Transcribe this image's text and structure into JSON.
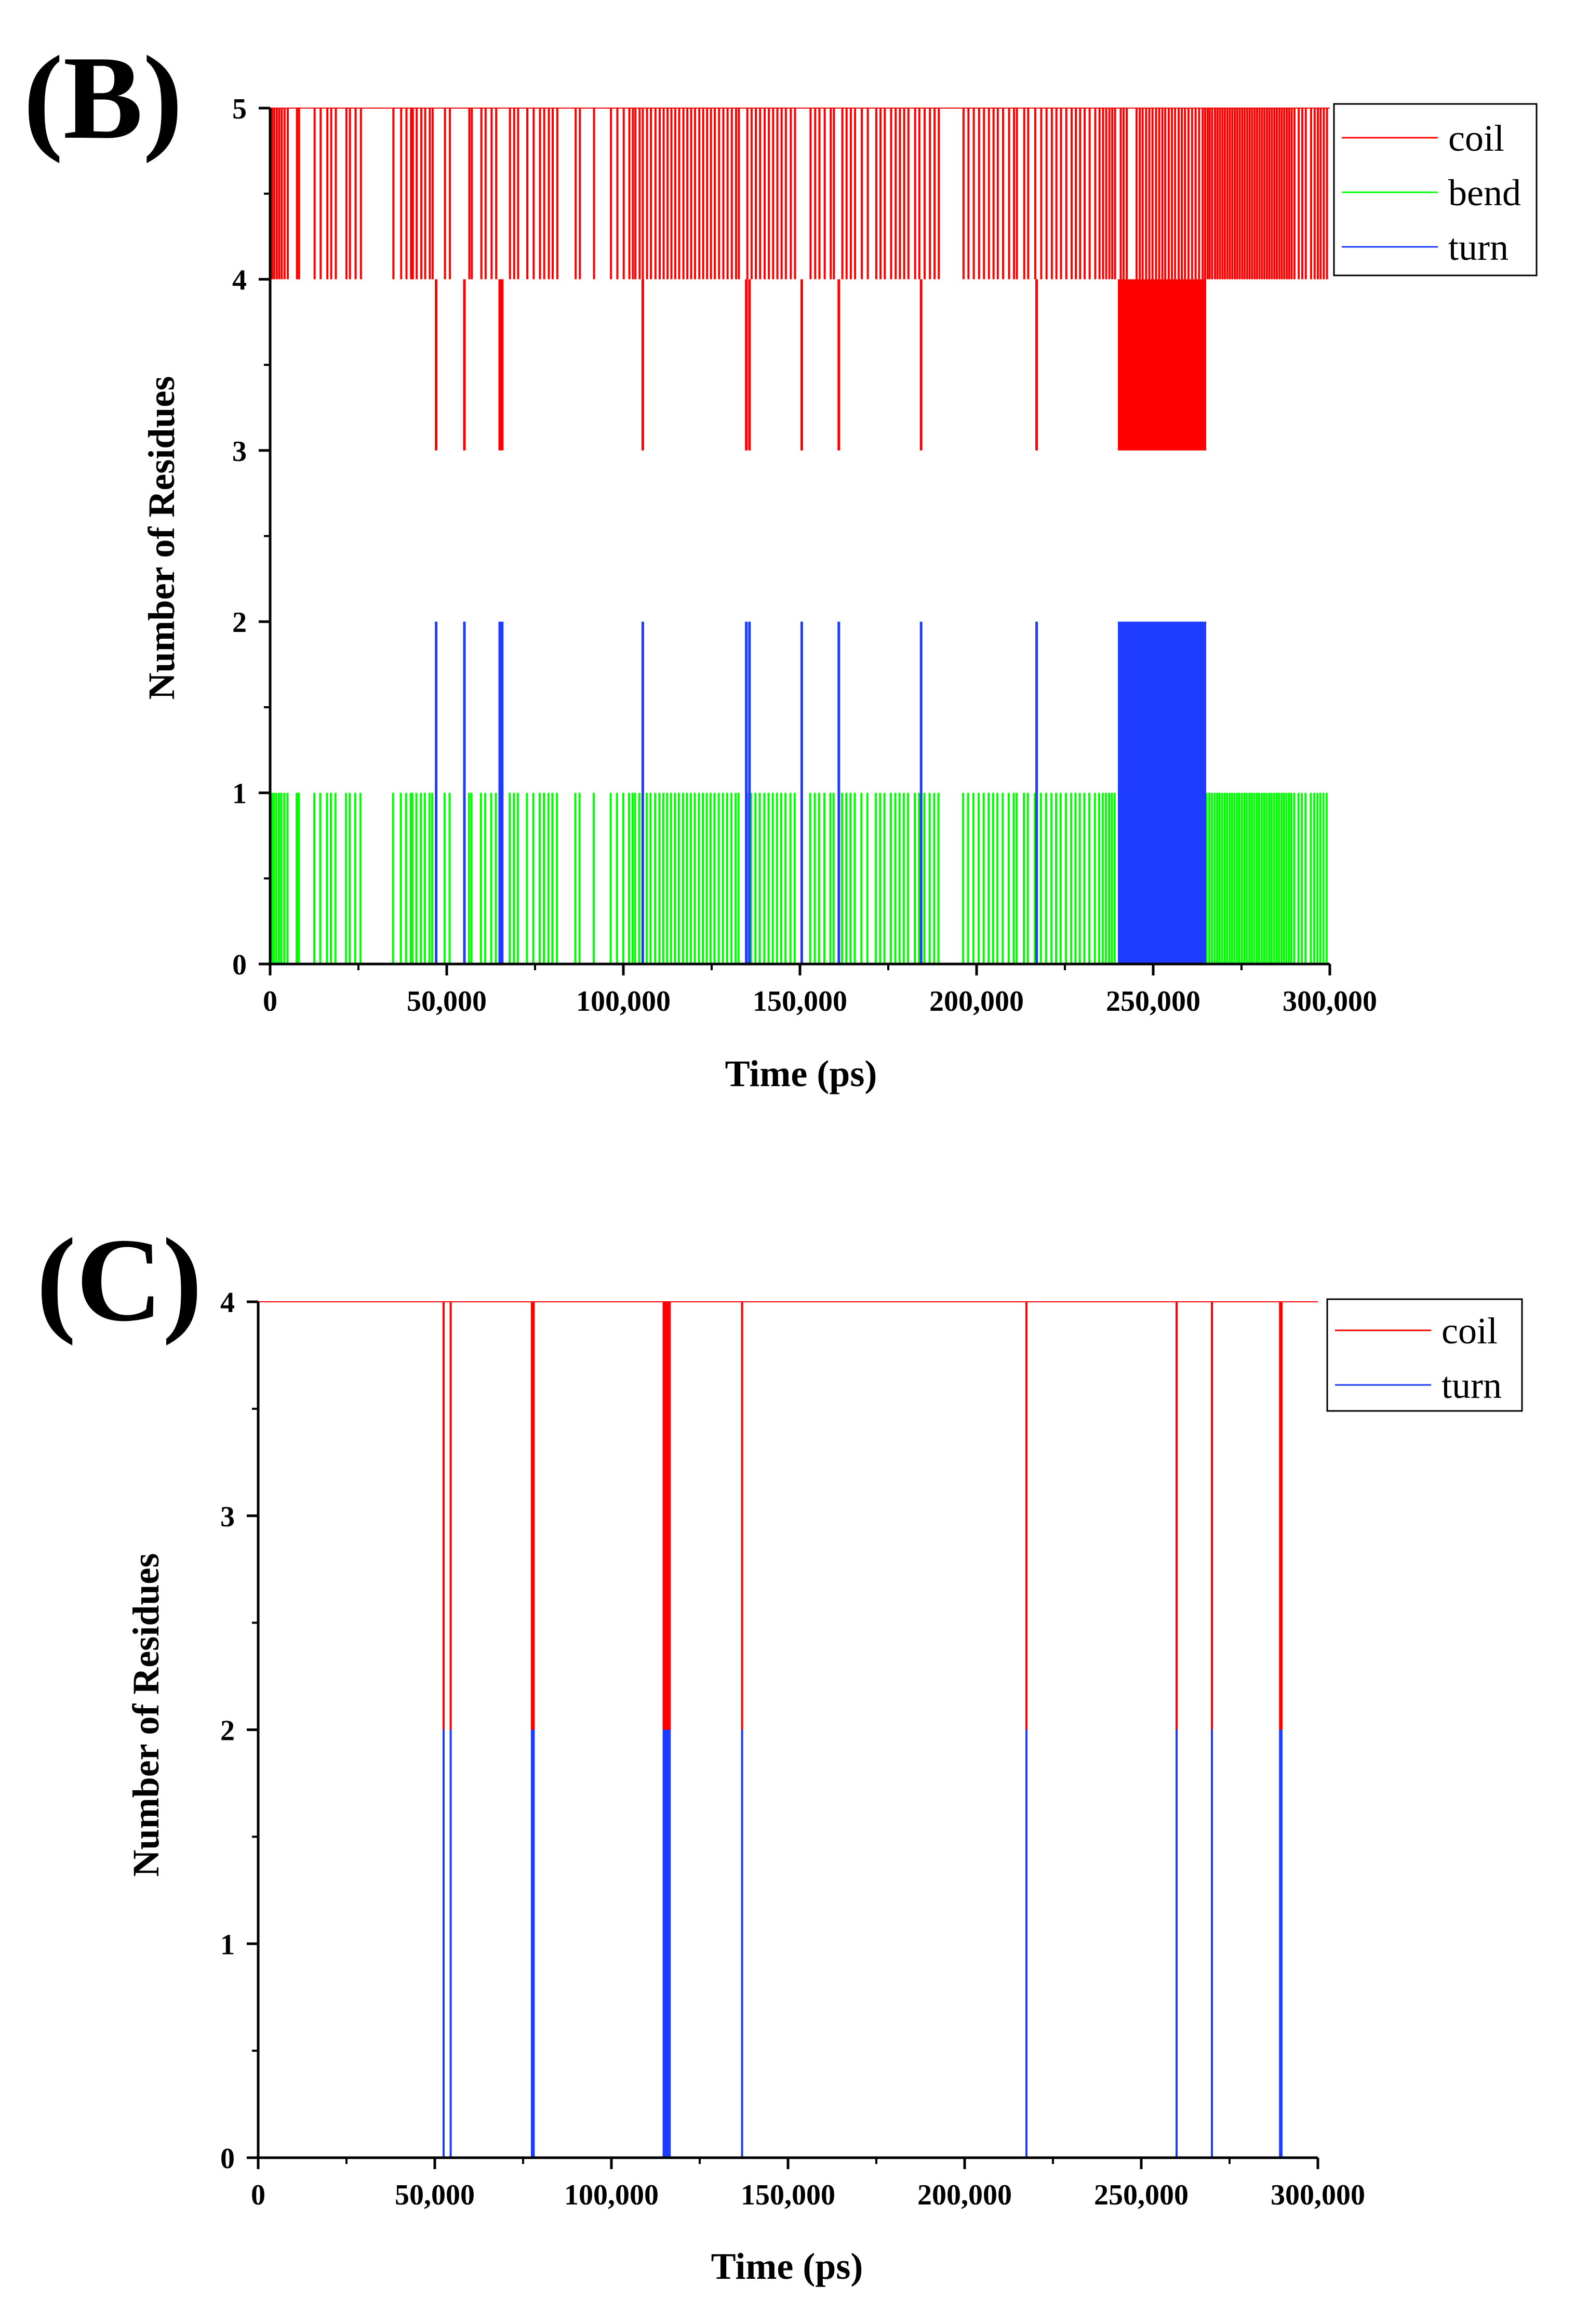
{
  "chart_data": [
    {
      "panel_label": "(B)",
      "type": "line",
      "style": "step",
      "xlabel": "Time (ps)",
      "ylabel": "Number of Residues",
      "xlim": [
        0,
        300000
      ],
      "ylim": [
        0,
        5
      ],
      "xticks": [
        0,
        50000,
        100000,
        150000,
        200000,
        250000,
        300000
      ],
      "xtick_labels": [
        "0",
        "50,000",
        "100,000",
        "150,000",
        "200,000",
        "250,000",
        "300,000"
      ],
      "yticks": [
        0,
        1,
        2,
        3,
        4,
        5
      ],
      "ytick_labels": [
        "0",
        "1",
        "2",
        "3",
        "4",
        "5"
      ],
      "legend_position": "top-right",
      "series": [
        {
          "name": "coil",
          "color": "#ff0000",
          "baseline": 5,
          "event_level": 4,
          "events_x": [
            600,
            1200,
            1900,
            2600,
            3300,
            4100,
            5000,
            7600,
            8200,
            12600,
            14300,
            16200,
            17300,
            18600,
            21600,
            22600,
            24200,
            25700,
            34900,
            37100,
            38600,
            39900,
            40400,
            41500,
            42800,
            43900,
            45200,
            46000,
            49500,
            50900,
            56400,
            57100,
            59800,
            61000,
            62700,
            64000,
            67900,
            69100,
            70200,
            72800,
            74600,
            76400,
            77600,
            78900,
            80000,
            81300,
            86500,
            87700,
            91700,
            96500,
            98300,
            100100,
            101700,
            102700,
            103400,
            104600,
            105500,
            106700,
            107800,
            109100,
            110300,
            111400,
            112500,
            113600,
            114700,
            115800,
            117000,
            118100,
            119200,
            120300,
            121500,
            122600,
            123700,
            124800,
            125900,
            127100,
            128300,
            129500,
            130700,
            131900,
            132700,
            135100,
            136300,
            137500,
            138700,
            140000,
            141200,
            142400,
            143600,
            144800,
            146000,
            147400,
            148600,
            153000,
            154300,
            155500,
            157000,
            158700,
            159600,
            162000,
            163200,
            164400,
            165600,
            167500,
            169200,
            171600,
            172800,
            174000,
            175800,
            177100,
            178300,
            179500,
            180700,
            182600,
            183800,
            185300,
            186800,
            188100,
            189300,
            196300,
            197700,
            199200,
            200700,
            202100,
            203500,
            204800,
            206000,
            207500,
            209200,
            210600,
            211400,
            213500,
            214600,
            216600,
            218300,
            219800,
            221300,
            222600,
            223900,
            225400,
            226900,
            228100,
            229300,
            230600,
            232000,
            233600,
            234800,
            235800,
            236700,
            237600,
            238400,
            239200,
            240800,
            241600,
            242500,
            245300,
            246200,
            247000,
            248000,
            248900,
            249800,
            250800,
            251700,
            252600,
            253400,
            254400,
            255300,
            256200,
            257200,
            258100,
            259000,
            260000,
            261000,
            262000,
            263000,
            264000,
            264700,
            265400,
            266000,
            266700,
            267500,
            268200,
            268900,
            269600,
            270300,
            271000,
            271700,
            272400,
            273100,
            273800,
            274500,
            275200,
            275900,
            276600,
            277300,
            278000,
            278700,
            279400,
            280100,
            280800,
            281500,
            282200,
            282900,
            283600,
            284300,
            285000,
            285700,
            286400,
            287100,
            287800,
            288500,
            289200,
            290000,
            291200,
            292200,
            293200,
            294700,
            295700,
            296600,
            297400,
            298300,
            299200
          ],
          "dips_to_3_x": [
            47000,
            55000,
            65000,
            65700,
            105500,
            134800,
            135700,
            150500,
            161000,
            184300,
            217000
          ],
          "band_3_to_4": [
            240000,
            265000
          ]
        },
        {
          "name": "bend",
          "color": "#00ff00",
          "baseline": 0,
          "event_level": 1,
          "events_x": [
            500,
            1100,
            1800,
            2500,
            3200,
            4000,
            4900,
            7500,
            8100,
            12500,
            14200,
            16100,
            17200,
            18500,
            21500,
            22500,
            24100,
            25600,
            34800,
            37000,
            38500,
            39800,
            40300,
            41400,
            42700,
            43800,
            45100,
            45900,
            49400,
            50800,
            56300,
            57000,
            59700,
            60900,
            62600,
            63900,
            67800,
            69000,
            70100,
            72700,
            74500,
            76300,
            77500,
            78800,
            79900,
            81200,
            86400,
            87600,
            91600,
            96400,
            98200,
            100000,
            101600,
            102600,
            103300,
            104500,
            105400,
            106600,
            107700,
            109000,
            110200,
            111300,
            112400,
            113500,
            114600,
            115700,
            116900,
            118000,
            119100,
            120200,
            121400,
            122500,
            123600,
            124700,
            125800,
            127000,
            128200,
            129400,
            130600,
            131800,
            132600,
            135000,
            136200,
            137400,
            138600,
            139900,
            141100,
            142300,
            143500,
            144700,
            145900,
            147300,
            148500,
            152900,
            154200,
            155400,
            156900,
            158600,
            159500,
            161900,
            163100,
            164300,
            165500,
            167400,
            169100,
            171500,
            172700,
            173900,
            175700,
            177000,
            178200,
            179400,
            180600,
            182500,
            183700,
            185200,
            186700,
            188000,
            189200,
            196200,
            197600,
            199100,
            200600,
            202000,
            203400,
            204700,
            205900,
            207400,
            209100,
            210500,
            211300,
            213400,
            214500,
            216500,
            218200,
            219700,
            221200,
            222500,
            223800,
            225300,
            226800,
            228000,
            229200,
            230500,
            231900,
            233500,
            234700,
            235700,
            236600,
            237500,
            238300,
            239100,
            265100,
            265900,
            266600,
            267400,
            268100,
            268800,
            269500,
            270200,
            270900,
            271600,
            272300,
            273000,
            273700,
            274400,
            275100,
            275800,
            276500,
            277200,
            277900,
            278600,
            279300,
            280000,
            280700,
            281400,
            282100,
            282800,
            283500,
            284200,
            284900,
            285600,
            286300,
            287000,
            287700,
            288400,
            289100,
            289900,
            291100,
            292100,
            293100,
            294600,
            295600,
            296500,
            297300,
            298200,
            299100
          ]
        },
        {
          "name": "turn",
          "color": "#1e3cff",
          "baseline": 0,
          "event_level": 2,
          "spikes_x": [
            47000,
            55000,
            65000,
            65700,
            105500,
            134800,
            135700,
            150500,
            161000,
            184300,
            217000
          ],
          "band_0_to_2": [
            240000,
            265000
          ]
        }
      ]
    },
    {
      "panel_label": "(C)",
      "type": "line",
      "style": "step",
      "xlabel": "Time (ps)",
      "ylabel": "Number of Residues",
      "xlim": [
        0,
        300000
      ],
      "ylim": [
        0,
        4
      ],
      "xticks": [
        0,
        50000,
        100000,
        150000,
        200000,
        250000,
        300000
      ],
      "xtick_labels": [
        "0",
        "50,000",
        "100,000",
        "150,000",
        "200,000",
        "250,000",
        "300,000"
      ],
      "yticks": [
        0,
        1,
        2,
        3,
        4
      ],
      "ytick_labels": [
        "0",
        "1",
        "2",
        "3",
        "4"
      ],
      "legend_position": "top-right",
      "series": [
        {
          "name": "coil",
          "color": "#ff0000",
          "baseline": 4,
          "event_level": 2,
          "events_x": [
            52500,
            54500,
            77500,
            78000,
            114800,
            115500,
            116000,
            116500,
            137000,
            217500,
            260000,
            270000,
            289300,
            289700
          ],
          "band_2_to_4": [
            114500,
            116500
          ]
        },
        {
          "name": "turn",
          "color": "#1e3cff",
          "baseline": 0,
          "event_level": 2,
          "events_x": [
            52500,
            54500,
            77500,
            78000,
            114800,
            115500,
            116000,
            116500,
            137000,
            217500,
            260000,
            270000,
            289300,
            289700
          ],
          "band_0_to_2": [
            114500,
            116500
          ]
        }
      ]
    }
  ]
}
